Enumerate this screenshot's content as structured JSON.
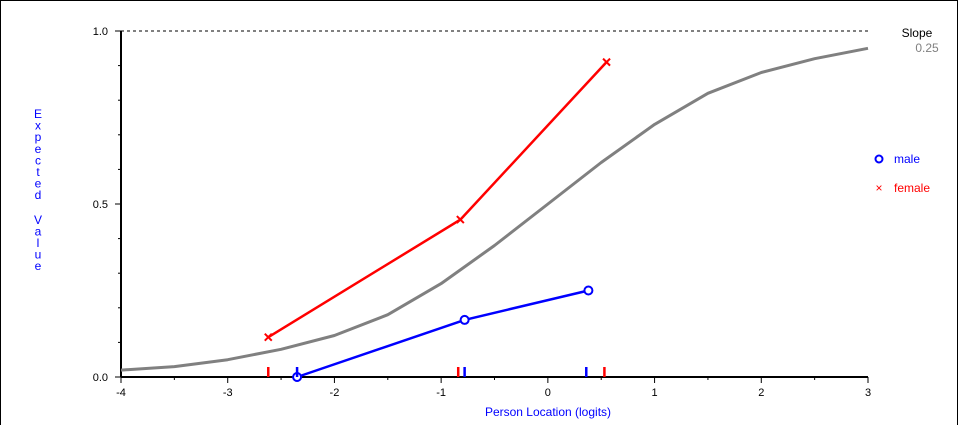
{
  "chart_data": {
    "type": "line",
    "xlabel": "Person Location (logits)",
    "ylabel": "Expected Value",
    "xlim": [
      -4,
      3
    ],
    "ylim": [
      0,
      1
    ],
    "x_ticks": [
      -4,
      -3,
      -2,
      -1,
      0,
      1,
      2,
      3
    ],
    "y_ticks": [
      0.0,
      0.5,
      1.0
    ],
    "y_tick_labels": [
      "0.0",
      "0.5",
      "1.0"
    ],
    "reference_line": {
      "y": 1.0,
      "style": "dashed"
    },
    "grid": false,
    "legend_position": "right",
    "slope": {
      "label": "Slope",
      "value": "0.25"
    },
    "curve": {
      "color": "#808080",
      "x": [
        -4,
        -3.5,
        -3,
        -2.5,
        -2,
        -1.5,
        -1,
        -0.5,
        0,
        0.5,
        1,
        1.5,
        2,
        2.5,
        3
      ],
      "y": [
        0.02,
        0.03,
        0.05,
        0.08,
        0.12,
        0.18,
        0.27,
        0.38,
        0.5,
        0.62,
        0.73,
        0.82,
        0.88,
        0.92,
        0.95
      ]
    },
    "series": [
      {
        "name": "male",
        "marker": "o",
        "color": "#0000ff",
        "x": [
          -2.35,
          -0.78,
          0.38
        ],
        "y": [
          0.0,
          0.165,
          0.25
        ],
        "rug": [
          -2.35,
          -0.78,
          0.36
        ]
      },
      {
        "name": "female",
        "marker": "x",
        "color": "#ff0000",
        "x": [
          -2.62,
          -0.82,
          0.55
        ],
        "y": [
          0.115,
          0.455,
          0.91
        ],
        "rug": [
          -2.62,
          -0.84,
          0.53
        ]
      }
    ]
  }
}
